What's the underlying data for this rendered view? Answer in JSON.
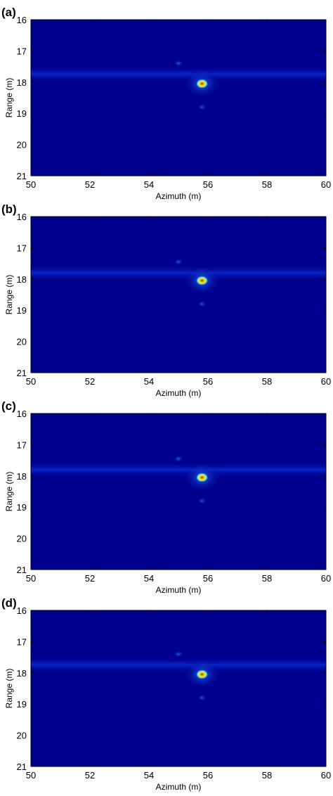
{
  "panels": [
    {
      "label": "(a)"
    },
    {
      "label": "(b)"
    },
    {
      "label": "(c)"
    },
    {
      "label": "(d)"
    }
  ],
  "chart_data": [
    {
      "type": "heatmap",
      "panel": "(a)",
      "xlabel": "Azimuth (m)",
      "ylabel": "Range (m)",
      "xlim": [
        50,
        60
      ],
      "ylim": [
        16,
        21
      ],
      "xticks": [
        50,
        52,
        54,
        56,
        58,
        60
      ],
      "yticks": [
        16,
        17,
        18,
        19,
        20,
        21
      ],
      "y_reversed": true,
      "colormap": "jet",
      "peak": {
        "x": 55.8,
        "y": 18.05
      },
      "features": [
        {
          "kind": "clutter-stripe",
          "y": 17.75,
          "x_range": [
            50,
            60
          ]
        },
        {
          "kind": "weak-spot",
          "x": 55.0,
          "y": 17.4
        },
        {
          "kind": "weak-spot",
          "x": 55.8,
          "y": 18.8
        }
      ]
    },
    {
      "type": "heatmap",
      "panel": "(b)",
      "xlabel": "Azimuth (m)",
      "ylabel": "Range (m)",
      "xlim": [
        50,
        60
      ],
      "ylim": [
        16,
        21
      ],
      "xticks": [
        50,
        52,
        54,
        56,
        58,
        60
      ],
      "yticks": [
        16,
        17,
        18,
        19,
        20,
        21
      ],
      "y_reversed": true,
      "colormap": "jet",
      "peak": {
        "x": 55.8,
        "y": 18.05
      },
      "features": [
        {
          "kind": "clutter-stripe",
          "y": 17.8,
          "x_range": [
            50,
            60
          ]
        },
        {
          "kind": "weak-spot",
          "x": 55.0,
          "y": 17.45
        },
        {
          "kind": "weak-spot",
          "x": 55.8,
          "y": 18.8
        }
      ]
    },
    {
      "type": "heatmap",
      "panel": "(c)",
      "xlabel": "Azimuth (m)",
      "ylabel": "Range (m)",
      "xlim": [
        50,
        60
      ],
      "ylim": [
        16,
        21
      ],
      "xticks": [
        50,
        52,
        54,
        56,
        58,
        60
      ],
      "yticks": [
        16,
        17,
        18,
        19,
        20,
        21
      ],
      "y_reversed": true,
      "colormap": "jet",
      "peak": {
        "x": 55.8,
        "y": 18.05
      },
      "features": [
        {
          "kind": "clutter-stripe",
          "y": 17.8,
          "x_range": [
            50,
            60
          ]
        },
        {
          "kind": "weak-spot",
          "x": 55.0,
          "y": 17.45
        },
        {
          "kind": "weak-spot",
          "x": 55.8,
          "y": 18.8
        }
      ]
    },
    {
      "type": "heatmap",
      "panel": "(d)",
      "xlabel": "Azimuth (m)",
      "ylabel": "Range (m)",
      "xlim": [
        50,
        60
      ],
      "ylim": [
        16,
        21
      ],
      "xticks": [
        50,
        52,
        54,
        56,
        58,
        60
      ],
      "yticks": [
        16,
        17,
        18,
        19,
        20,
        21
      ],
      "y_reversed": true,
      "colormap": "jet",
      "peak": {
        "x": 55.8,
        "y": 18.05
      },
      "features": [
        {
          "kind": "clutter-stripe",
          "y": 17.75,
          "x_range": [
            50,
            60
          ]
        },
        {
          "kind": "weak-spot",
          "x": 55.0,
          "y": 17.4
        },
        {
          "kind": "weak-spot",
          "x": 55.8,
          "y": 18.8
        }
      ]
    }
  ],
  "colors": {
    "background": "#00008f",
    "clutter": "#0a2dd6",
    "glow": "#1e6cff",
    "peak_mid": "#ffd400",
    "peak_core": "#c80000"
  }
}
